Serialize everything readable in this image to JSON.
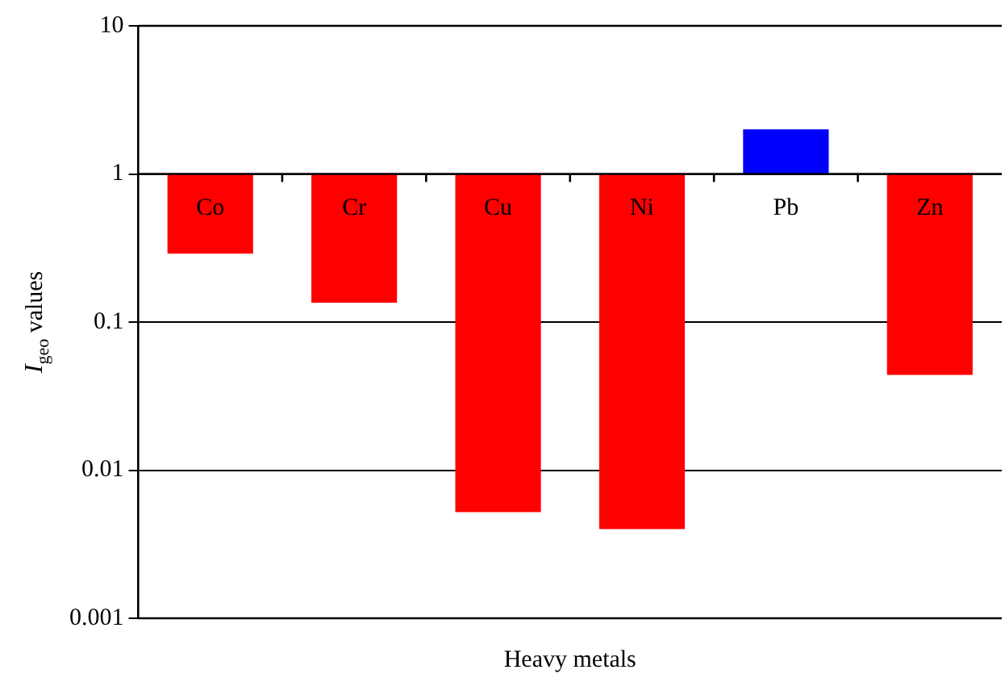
{
  "chart_data": {
    "type": "bar",
    "xlabel": "Heavy metals",
    "ylabel": "I$_{geo}$ values",
    "categories": [
      "Co",
      "Cr",
      "Cu",
      "Ni",
      "Pb",
      "Zn"
    ],
    "base": [
      1,
      1,
      1,
      1,
      1,
      1
    ],
    "values": [
      -0.71,
      -0.865,
      -0.9948,
      -0.996,
      1.0,
      -0.956
    ],
    "colors": [
      "#ff0000",
      "#ff0000",
      "#ff0000",
      "#ff0000",
      "#0000ff",
      "#ff0000"
    ],
    "log": true,
    "ylim": [
      0.001,
      10
    ],
    "yticks": [
      0.001,
      0.01,
      0.1,
      1,
      10
    ],
    "grid": "y"
  }
}
